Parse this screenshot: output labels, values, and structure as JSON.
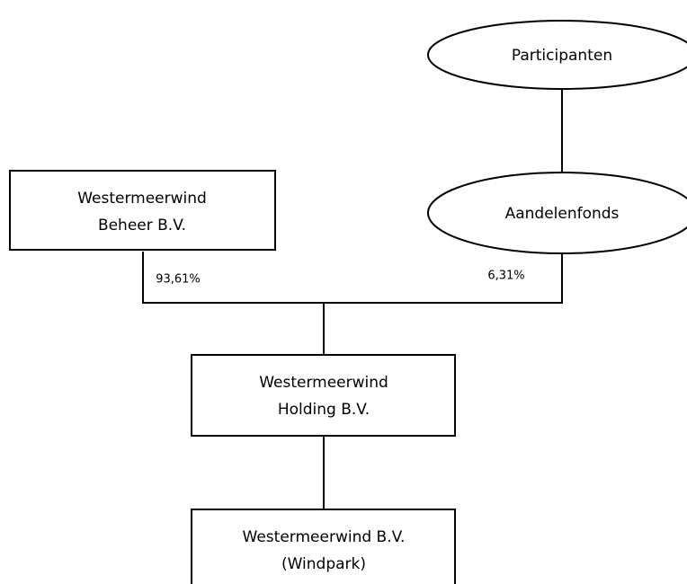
{
  "nodes": [
    {
      "label": [
        "Participanten"
      ]
    },
    {
      "label": [
        "Aandelenfonds"
      ]
    },
    {
      "label": [
        "Westermeerwind",
        "Beheer B.V."
      ]
    },
    {
      "label": [
        "Westermeerwind",
        "Holding B.V."
      ]
    },
    {
      "label": [
        "Westermeerwind B.V.",
        "(Windpark)"
      ]
    }
  ],
  "edges": [
    {
      "label": "93,61%"
    },
    {
      "label": "6,31%"
    }
  ]
}
